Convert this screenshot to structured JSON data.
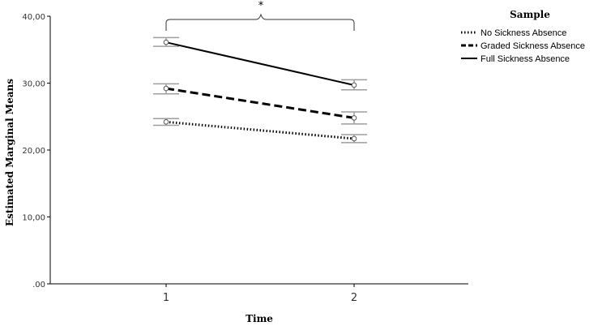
{
  "chart_data": {
    "type": "line",
    "xlabel": "Time",
    "ylabel": "Estimated Marginal Means",
    "categories": [
      "1",
      "2"
    ],
    "ylim": [
      0,
      40
    ],
    "y_ticks": [
      ".00",
      "10,00",
      "20,00",
      "30,00",
      "40,00"
    ],
    "legend_title": "Sample",
    "legend_position": "top-right",
    "grid": false,
    "annotation": "*",
    "series": [
      {
        "name": "No Sickness Absence",
        "style": "dotted",
        "values": [
          24.2,
          21.7
        ],
        "error_low": [
          23.7,
          21.1
        ],
        "error_high": [
          24.7,
          22.3
        ]
      },
      {
        "name": "Graded Sickness Absence",
        "style": "dashed",
        "values": [
          29.2,
          24.8
        ],
        "error_low": [
          28.4,
          23.9
        ],
        "error_high": [
          29.9,
          25.7
        ]
      },
      {
        "name": "Full Sickness Absence",
        "style": "solid",
        "values": [
          36.1,
          29.7
        ],
        "error_low": [
          35.5,
          29.0
        ],
        "error_high": [
          36.8,
          30.5
        ]
      }
    ],
    "colors": {
      "line": "#000000",
      "error_bar": "#9e9e9e",
      "axis": "#000000"
    }
  }
}
